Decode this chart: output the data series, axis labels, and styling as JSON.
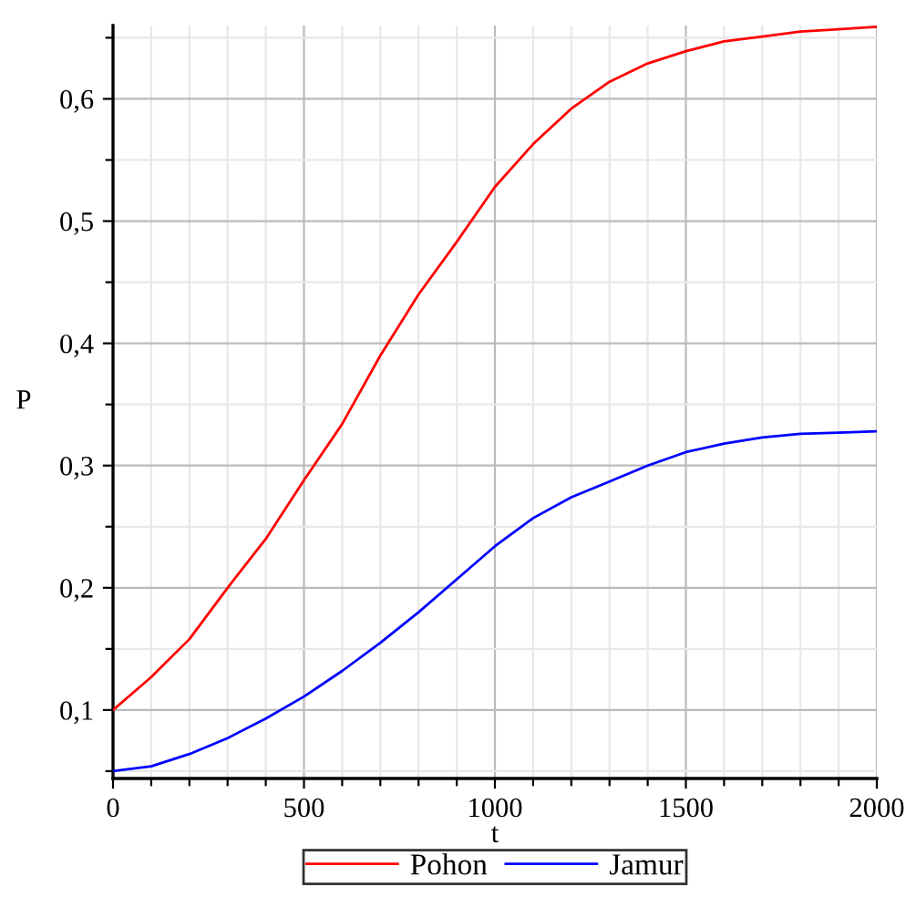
{
  "chart_data": {
    "type": "line",
    "xlabel": "t",
    "ylabel": "P",
    "x": [
      0,
      100,
      200,
      300,
      400,
      500,
      600,
      700,
      800,
      900,
      1000,
      1100,
      1200,
      1300,
      1400,
      1500,
      1600,
      1700,
      1800,
      1900,
      2000
    ],
    "series": [
      {
        "name": "Pohon",
        "color": "#ff0000",
        "values": [
          0.1,
          0.127,
          0.158,
          0.2,
          0.24,
          0.288,
          0.334,
          0.39,
          0.44,
          0.483,
          0.528,
          0.563,
          0.592,
          0.614,
          0.629,
          0.639,
          0.647,
          0.651,
          0.655,
          0.657,
          0.659
        ]
      },
      {
        "name": "Jamur",
        "color": "#0000ff",
        "values": [
          0.05,
          0.054,
          0.064,
          0.077,
          0.093,
          0.111,
          0.132,
          0.155,
          0.18,
          0.207,
          0.234,
          0.257,
          0.274,
          0.287,
          0.3,
          0.311,
          0.318,
          0.323,
          0.326,
          0.327,
          0.328
        ]
      }
    ],
    "xlim": [
      0,
      2000
    ],
    "ylim": [
      0.044,
      0.66
    ],
    "xticks": [
      0,
      500,
      1000,
      1500,
      2000
    ],
    "yticks": [
      {
        "value": 0.1,
        "label": "0,1"
      },
      {
        "value": 0.2,
        "label": "0,2"
      },
      {
        "value": 0.3,
        "label": "0,3"
      },
      {
        "value": 0.4,
        "label": "0,4"
      },
      {
        "value": 0.5,
        "label": "0,5"
      },
      {
        "value": 0.6,
        "label": "0,6"
      }
    ],
    "grid": true,
    "legend": "bottom",
    "line_style": "solid",
    "marker": "none"
  }
}
